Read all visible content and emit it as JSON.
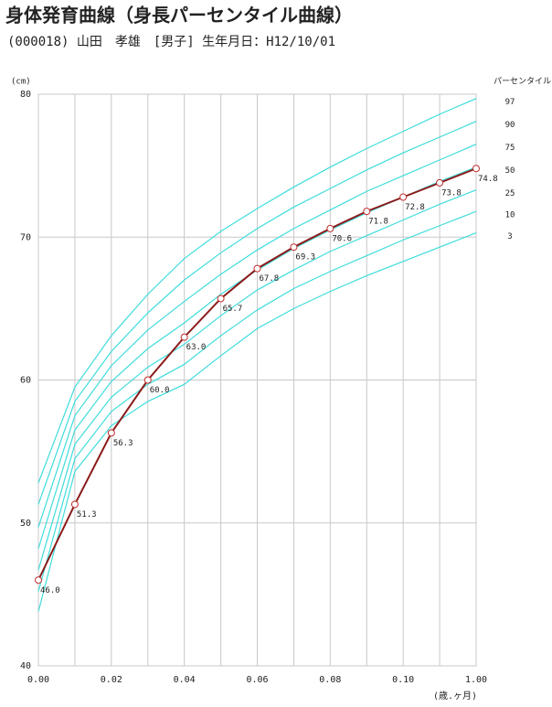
{
  "chart_data": {
    "type": "line",
    "title": "身体発育曲線（身長パーセンタイル曲線）",
    "subtitle": "(000018) 山田　孝雄　[男子] 生年月日：H12/10/01",
    "y_label": "(cm)",
    "x_label": "(歳.ヶ月)",
    "legend_title": "パーセンタイル",
    "x": [
      0,
      1,
      2,
      3,
      4,
      5,
      6,
      7,
      8,
      9,
      10,
      11,
      12
    ],
    "xlim": [
      0,
      12
    ],
    "xticks": [
      {
        "value": 0,
        "label": "0.00"
      },
      {
        "value": 2,
        "label": "0.02"
      },
      {
        "value": 4,
        "label": "0.04"
      },
      {
        "value": 6,
        "label": "0.06"
      },
      {
        "value": 8,
        "label": "0.08"
      },
      {
        "value": 10,
        "label": "0.10"
      },
      {
        "value": 12,
        "label": "1.00"
      }
    ],
    "minor_xticks": [
      1,
      3,
      5,
      7,
      9,
      11
    ],
    "ylim": [
      40,
      80
    ],
    "yticks": [
      40,
      50,
      60,
      70,
      80
    ],
    "grid": true,
    "percentile_color": "#3fdcdc",
    "percentiles": [
      {
        "name": "97",
        "values": [
          52.8,
          59.5,
          63.1,
          66.0,
          68.5,
          70.4,
          72.0,
          73.5,
          74.9,
          76.2,
          77.4,
          78.6,
          79.7
        ]
      },
      {
        "name": "90",
        "values": [
          51.3,
          58.5,
          62.0,
          64.7,
          67.0,
          68.9,
          70.6,
          72.1,
          73.4,
          74.7,
          75.9,
          77.0,
          78.1
        ]
      },
      {
        "name": "75",
        "values": [
          49.7,
          57.5,
          61.0,
          63.5,
          65.5,
          67.4,
          69.1,
          70.6,
          71.9,
          73.2,
          74.3,
          75.4,
          76.5
        ]
      },
      {
        "name": "50",
        "values": [
          48.2,
          56.5,
          59.9,
          62.2,
          64.0,
          66.0,
          67.7,
          69.2,
          70.5,
          71.7,
          72.8,
          73.9,
          74.9
        ]
      },
      {
        "name": "25",
        "values": [
          46.7,
          55.5,
          58.8,
          60.9,
          62.5,
          64.5,
          66.3,
          67.7,
          69.0,
          70.1,
          71.2,
          72.3,
          73.3
        ]
      },
      {
        "name": "10",
        "values": [
          45.2,
          54.5,
          57.8,
          59.7,
          61.1,
          63.1,
          64.9,
          66.4,
          67.6,
          68.7,
          69.8,
          70.8,
          71.8
        ]
      },
      {
        "name": "3",
        "values": [
          43.8,
          53.6,
          56.8,
          58.5,
          59.7,
          61.7,
          63.6,
          65.0,
          66.2,
          67.3,
          68.3,
          69.3,
          70.3
        ]
      }
    ],
    "patient": {
      "color": "#8b1a1a",
      "values": [
        46.0,
        51.3,
        56.3,
        60.0,
        63.0,
        65.7,
        67.8,
        69.3,
        70.6,
        71.8,
        72.8,
        73.8,
        74.8
      ],
      "value_labels": [
        "46.0",
        "51.3",
        "56.3",
        "60.0",
        "63.0",
        "65.7",
        "67.8",
        "69.3",
        "70.6",
        "71.8",
        "72.8",
        "73.8",
        "74.8"
      ]
    }
  }
}
